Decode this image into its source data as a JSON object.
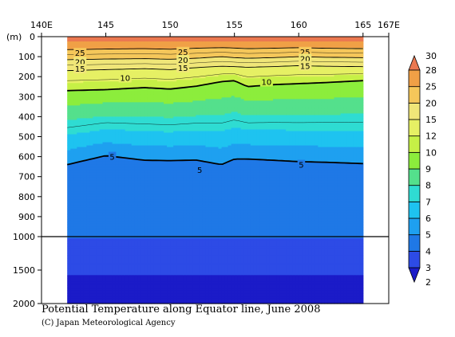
{
  "title": "Potential Temperature along Equator line, June 2008",
  "credit": "(C) Japan Meteorological Agency",
  "chart_data": {
    "type": "heatmap",
    "title": "Potential Temperature along Equator line, June 2008",
    "x_axis": {
      "range": [
        140,
        167
      ],
      "ticks": [
        140,
        145,
        150,
        155,
        160,
        165,
        167
      ],
      "tick_labels": [
        "140E",
        "145",
        "150",
        "155",
        "160",
        "165",
        "167E"
      ],
      "data_extent": [
        142,
        165
      ]
    },
    "y_axis": {
      "unit_label": "(m)",
      "segments": [
        {
          "from": 0,
          "to": 1000,
          "ticks": [
            0,
            100,
            200,
            300,
            400,
            500,
            600,
            700,
            800,
            900,
            1000
          ]
        },
        {
          "from": 1000,
          "to": 2000,
          "ticks": [
            1500,
            2000
          ]
        }
      ],
      "tick_labels": [
        "0",
        "100",
        "200",
        "300",
        "400",
        "500",
        "600",
        "700",
        "800",
        "900",
        "1000",
        "1500",
        "2000"
      ],
      "reversed": true
    },
    "colorbar": {
      "levels": [
        2,
        3,
        4,
        5,
        6,
        7,
        8,
        9,
        10,
        12,
        15,
        20,
        25,
        28,
        30
      ],
      "colors": [
        "#1b1bc8",
        "#2d4be6",
        "#1f78e6",
        "#1ea0f0",
        "#1ec3f0",
        "#2fdcd2",
        "#54e08c",
        "#8ced3c",
        "#c6f046",
        "#e6f064",
        "#f0e678",
        "#f5c75a",
        "#f0a046",
        "#eb7850"
      ],
      "extend": "both",
      "position": "right"
    },
    "contour_labels": [
      {
        "text": "25",
        "x": 143,
        "depth": 80
      },
      {
        "text": "20",
        "x": 143,
        "depth": 125
      },
      {
        "text": "15",
        "x": 143,
        "depth": 160
      },
      {
        "text": "25",
        "x": 151,
        "depth": 75
      },
      {
        "text": "20",
        "x": 151,
        "depth": 115
      },
      {
        "text": "15",
        "x": 151,
        "depth": 155
      },
      {
        "text": "25",
        "x": 160.5,
        "depth": 75
      },
      {
        "text": "20",
        "x": 160.5,
        "depth": 110
      },
      {
        "text": "15",
        "x": 160.5,
        "depth": 145
      },
      {
        "text": "10",
        "x": 146.5,
        "depth": 205
      },
      {
        "text": "10",
        "x": 157.5,
        "depth": 225
      },
      {
        "text": "5",
        "x": 145.5,
        "depth": 600
      },
      {
        "text": "5",
        "x": 152.3,
        "depth": 665
      },
      {
        "text": "5",
        "x": 160.2,
        "depth": 640
      }
    ],
    "isotherm_depths": {
      "x": [
        142,
        145,
        148,
        150,
        152,
        154,
        155,
        156,
        158,
        160,
        162,
        165
      ],
      "t25": [
        65,
        62,
        60,
        63,
        58,
        55,
        57,
        60,
        58,
        55,
        58,
        60
      ],
      "t20": [
        115,
        112,
        110,
        113,
        108,
        100,
        105,
        108,
        105,
        100,
        103,
        105
      ],
      "t15": [
        170,
        165,
        160,
        165,
        155,
        148,
        150,
        153,
        150,
        145,
        148,
        150
      ],
      "t10": [
        270,
        265,
        255,
        262,
        248,
        225,
        220,
        250,
        240,
        235,
        230,
        220
      ],
      "t5": [
        640,
        595,
        618,
        620,
        617,
        640,
        612,
        612,
        618,
        625,
        628,
        635
      ]
    },
    "grid": false,
    "legend_position": "right"
  }
}
